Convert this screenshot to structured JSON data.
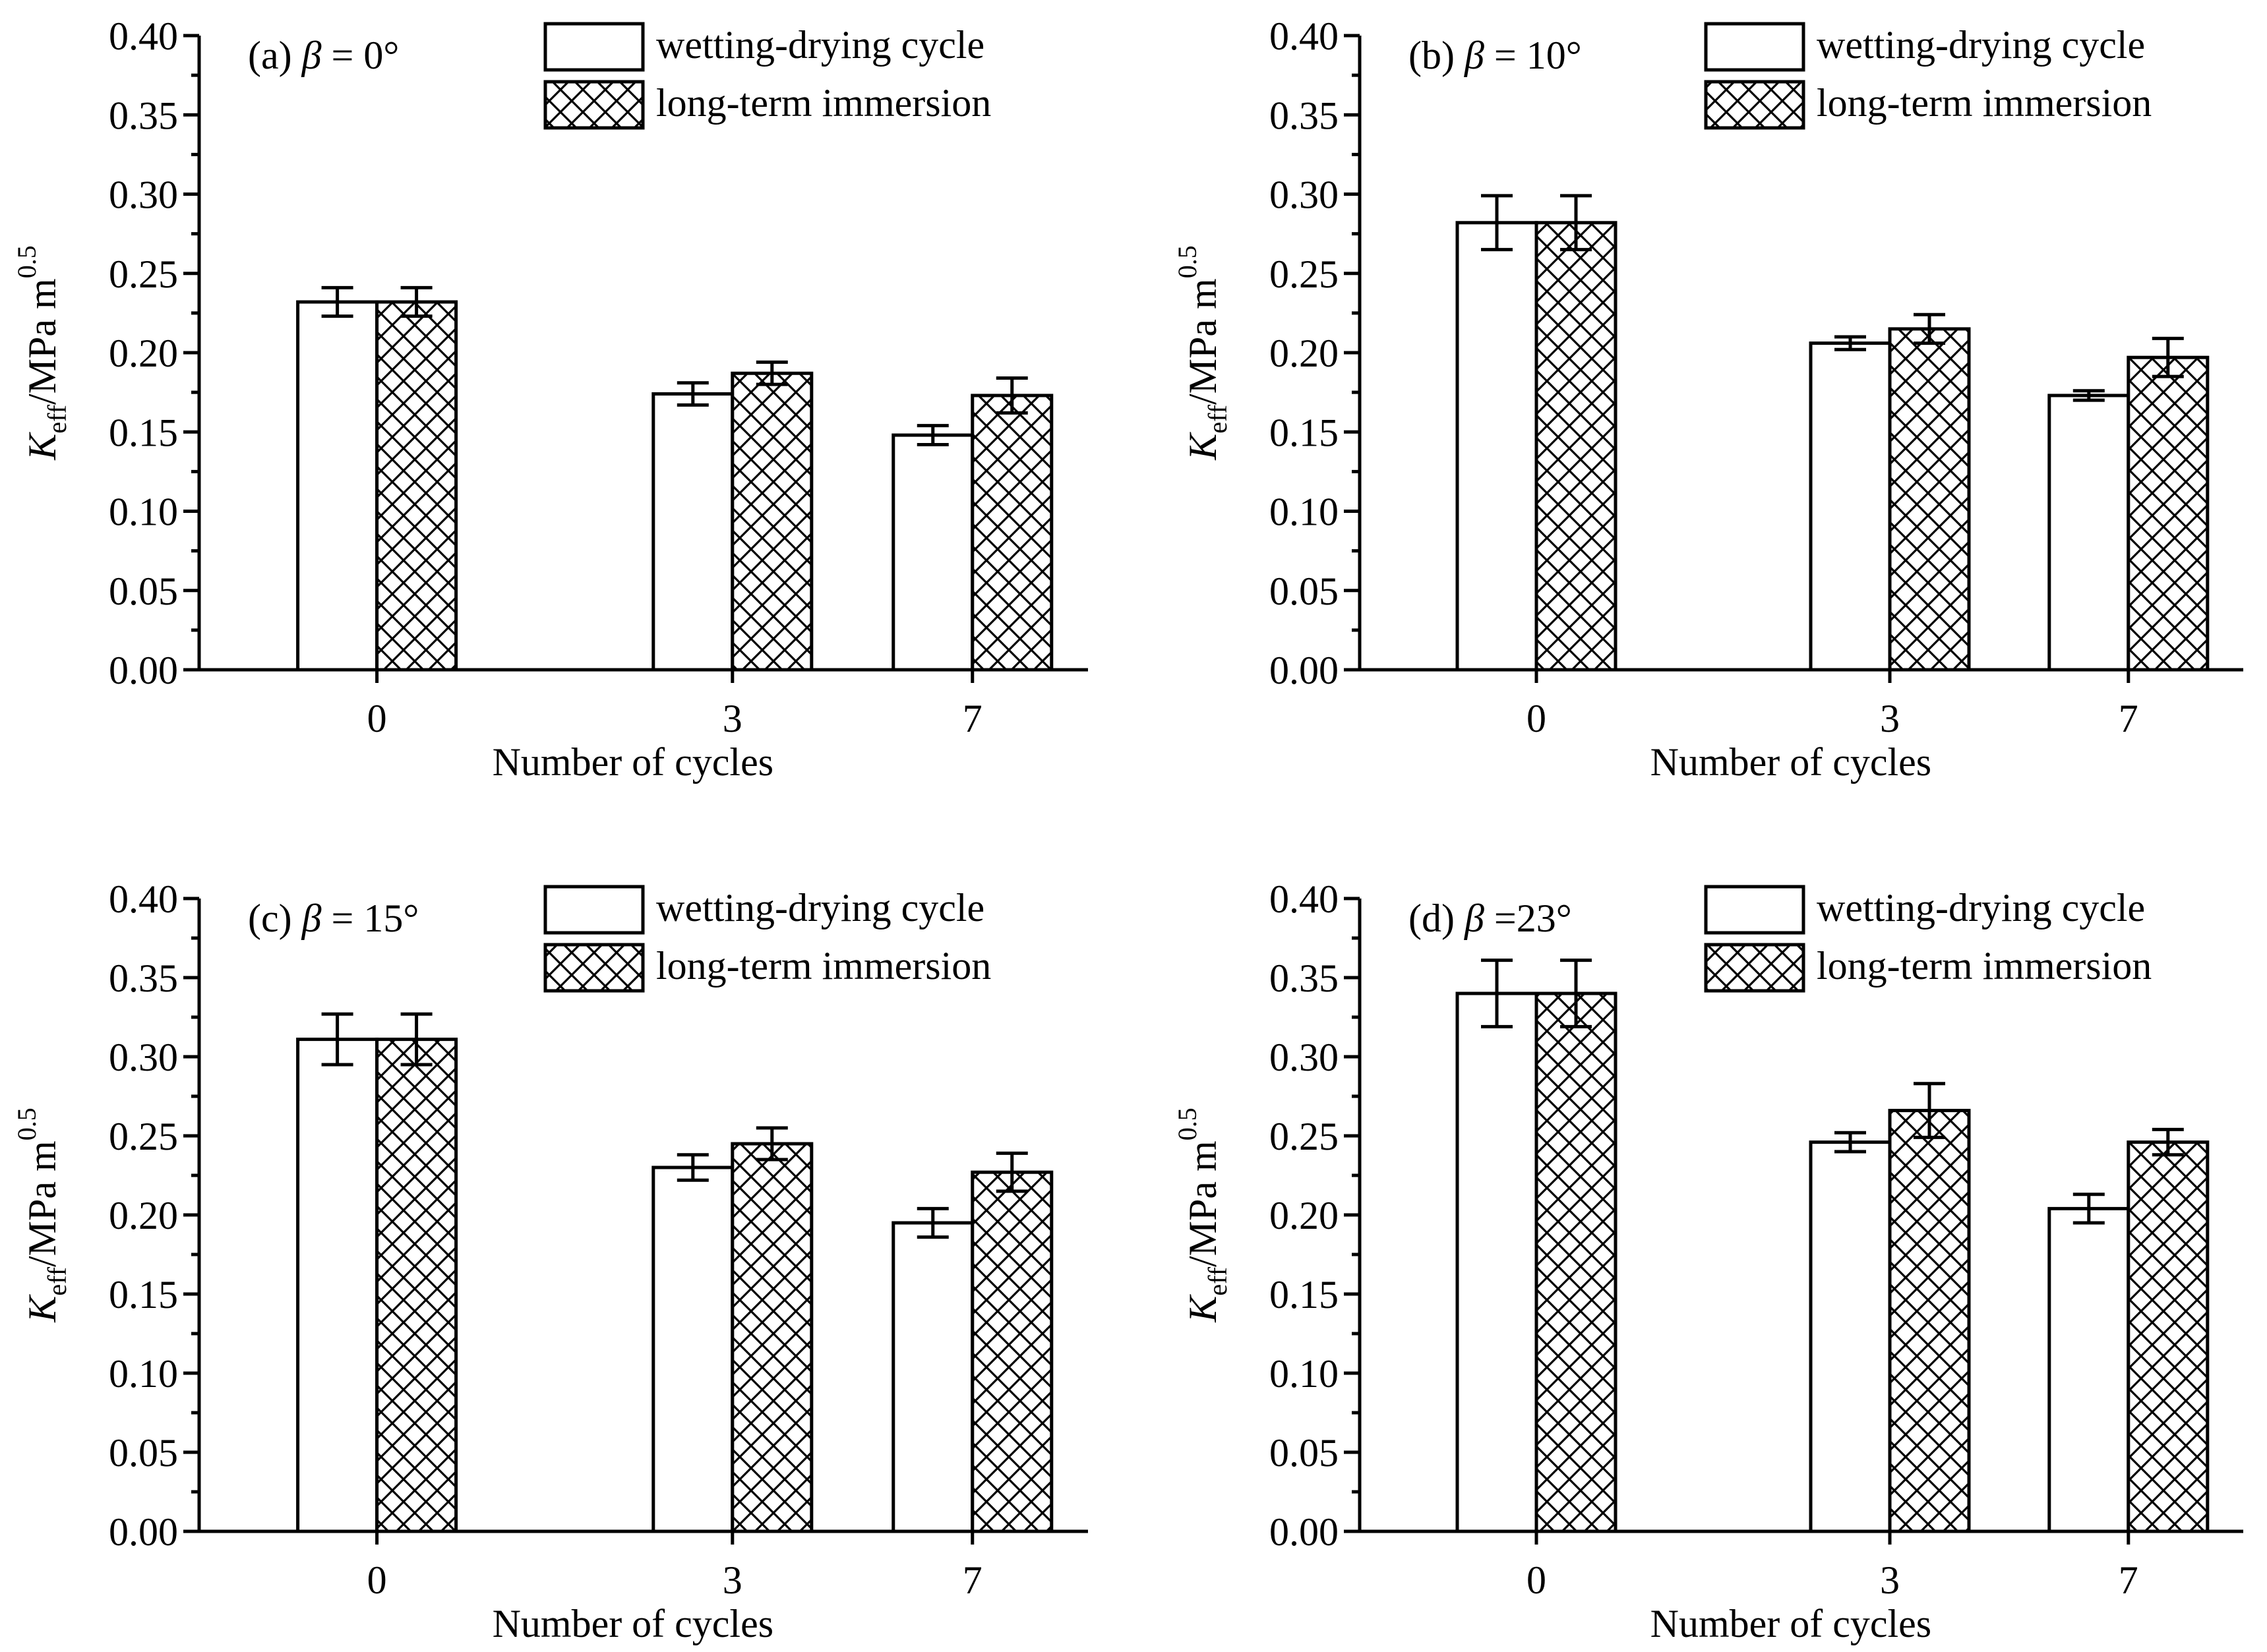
{
  "chart_data": [
    {
      "type": "bar",
      "panel_label": "(a)",
      "beta_symbol": "β",
      "beta_value": " = 0°",
      "categories": [
        "0",
        "3",
        "7"
      ],
      "series": [
        {
          "name": "wetting-drying cycle",
          "values": [
            0.232,
            0.174,
            0.148
          ],
          "errors": [
            0.009,
            0.007,
            0.006
          ]
        },
        {
          "name": "long-term immersion",
          "values": [
            0.232,
            0.187,
            0.173
          ],
          "errors": [
            0.009,
            0.007,
            0.011
          ]
        }
      ],
      "xlabel": "Number of cycles",
      "ylabel_main": "K",
      "ylabel_sub": "eff",
      "ylabel_rest": "/MPa m",
      "ylabel_sup": "0.5",
      "ylim": [
        0,
        0.4
      ],
      "yticks": [
        "0.00",
        "0.05",
        "0.10",
        "0.15",
        "0.20",
        "0.25",
        "0.30",
        "0.35",
        "0.40"
      ],
      "legend_position": "top-right"
    },
    {
      "type": "bar",
      "panel_label": "(b)",
      "beta_symbol": "β",
      "beta_value": " = 10°",
      "categories": [
        "0",
        "3",
        "7"
      ],
      "series": [
        {
          "name": "wetting-drying cycle",
          "values": [
            0.282,
            0.206,
            0.173
          ],
          "errors": [
            0.017,
            0.004,
            0.003
          ]
        },
        {
          "name": "long-term immersion",
          "values": [
            0.282,
            0.215,
            0.197
          ],
          "errors": [
            0.017,
            0.009,
            0.012
          ]
        }
      ],
      "xlabel": "Number of cycles",
      "ylabel_main": "K",
      "ylabel_sub": "eff",
      "ylabel_rest": "/MPa m",
      "ylabel_sup": "0.5",
      "ylim": [
        0,
        0.4
      ],
      "yticks": [
        "0.00",
        "0.05",
        "0.10",
        "0.15",
        "0.20",
        "0.25",
        "0.30",
        "0.35",
        "0.40"
      ],
      "legend_position": "top-right"
    },
    {
      "type": "bar",
      "panel_label": "(c)",
      "beta_symbol": "β",
      "beta_value": " = 15°",
      "categories": [
        "0",
        "3",
        "7"
      ],
      "series": [
        {
          "name": "wetting-drying cycle",
          "values": [
            0.311,
            0.23,
            0.195
          ],
          "errors": [
            0.016,
            0.008,
            0.009
          ]
        },
        {
          "name": "long-term immersion",
          "values": [
            0.311,
            0.245,
            0.227
          ],
          "errors": [
            0.016,
            0.01,
            0.012
          ]
        }
      ],
      "xlabel": "Number of cycles",
      "ylabel_main": "K",
      "ylabel_sub": "eff",
      "ylabel_rest": "/MPa m",
      "ylabel_sup": "0.5",
      "ylim": [
        0,
        0.4
      ],
      "yticks": [
        "0.00",
        "0.05",
        "0.10",
        "0.15",
        "0.20",
        "0.25",
        "0.30",
        "0.35",
        "0.40"
      ],
      "legend_position": "top-right"
    },
    {
      "type": "bar",
      "panel_label": "(d)",
      "beta_symbol": "β",
      "beta_value": " =23°",
      "categories": [
        "0",
        "3",
        "7"
      ],
      "series": [
        {
          "name": "wetting-drying cycle",
          "values": [
            0.34,
            0.246,
            0.204
          ],
          "errors": [
            0.021,
            0.006,
            0.009
          ]
        },
        {
          "name": "long-term immersion",
          "values": [
            0.34,
            0.266,
            0.246
          ],
          "errors": [
            0.021,
            0.017,
            0.008
          ]
        }
      ],
      "xlabel": "Number of cycles",
      "ylabel_main": "K",
      "ylabel_sub": "eff",
      "ylabel_rest": "/MPa m",
      "ylabel_sup": "0.5",
      "ylim": [
        0,
        0.4
      ],
      "yticks": [
        "0.00",
        "0.05",
        "0.10",
        "0.15",
        "0.20",
        "0.25",
        "0.30",
        "0.35",
        "0.40"
      ],
      "legend_position": "top-right"
    }
  ]
}
